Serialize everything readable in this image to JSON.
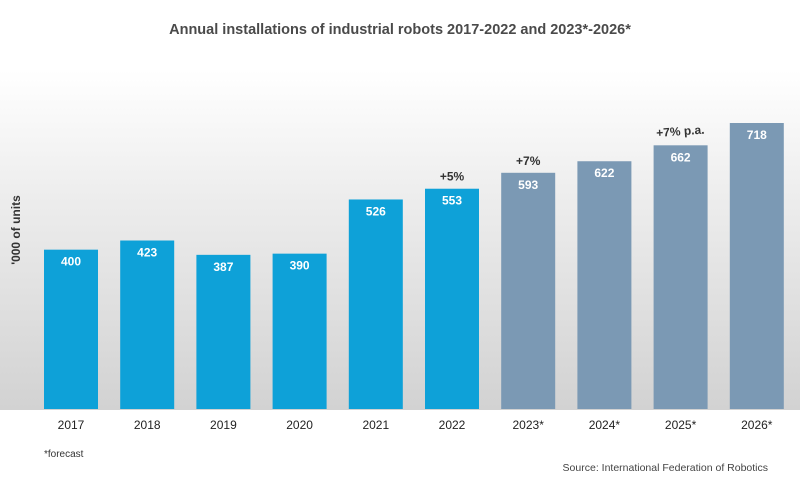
{
  "chart_data": {
    "type": "bar",
    "title": "Annual installations of industrial robots 2017-2022 and 2023*-2026*",
    "xlabel": "",
    "ylabel": "'000 of units",
    "categories": [
      "2017",
      "2018",
      "2019",
      "2020",
      "2021",
      "2022",
      "2023*",
      "2024*",
      "2025*",
      "2026*"
    ],
    "values": [
      400,
      423,
      387,
      390,
      526,
      553,
      593,
      622,
      662,
      718
    ],
    "value_labels": [
      "400",
      "423",
      "387",
      "390",
      "526",
      "553",
      "593",
      "622",
      "662",
      "718"
    ],
    "forecast": [
      false,
      false,
      false,
      false,
      false,
      false,
      true,
      true,
      true,
      true
    ],
    "colors": {
      "actual": "#0ea1d8",
      "forecast": "#7b99b4"
    },
    "ylim": [
      0,
      800
    ],
    "grid": false,
    "annotations": [
      {
        "text": "+5%",
        "category": "2022"
      },
      {
        "text": "+7%",
        "category": "2023*"
      },
      {
        "text": "+7% p.a.",
        "category": "2025*"
      }
    ],
    "footnote": "*forecast",
    "source": "Source: International Federation of Robotics"
  }
}
